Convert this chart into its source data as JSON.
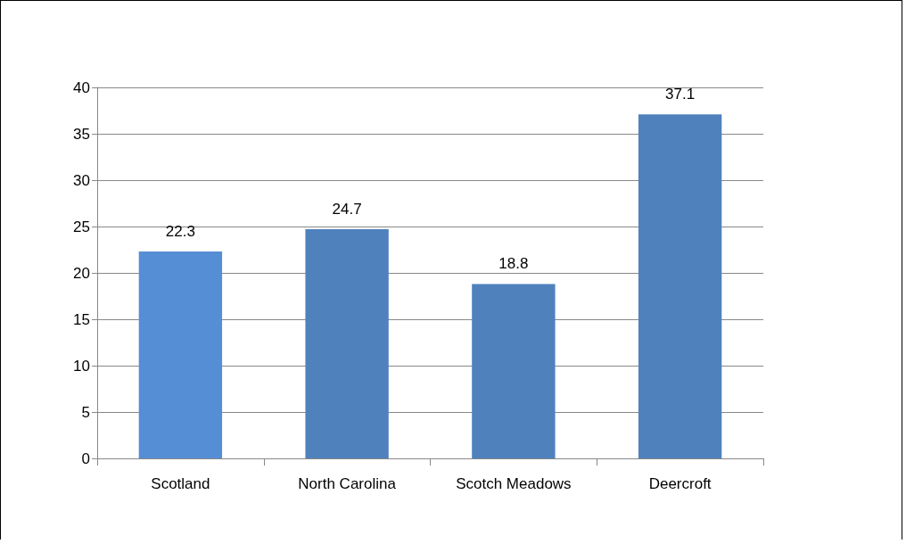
{
  "chart_data": {
    "type": "bar",
    "categories": [
      "Scotland",
      "North Carolina",
      "Scotch Meadows",
      "Deercroft"
    ],
    "values": [
      22.3,
      24.7,
      18.8,
      37.1
    ],
    "colors": [
      "#558ed5",
      "#4f81bd",
      "#4f81bd",
      "#4f81bd"
    ],
    "ylim": [
      0,
      40
    ],
    "yticks": [
      0,
      5,
      10,
      15,
      20,
      25,
      30,
      35,
      40
    ],
    "grid": "y",
    "data_labels": true
  }
}
